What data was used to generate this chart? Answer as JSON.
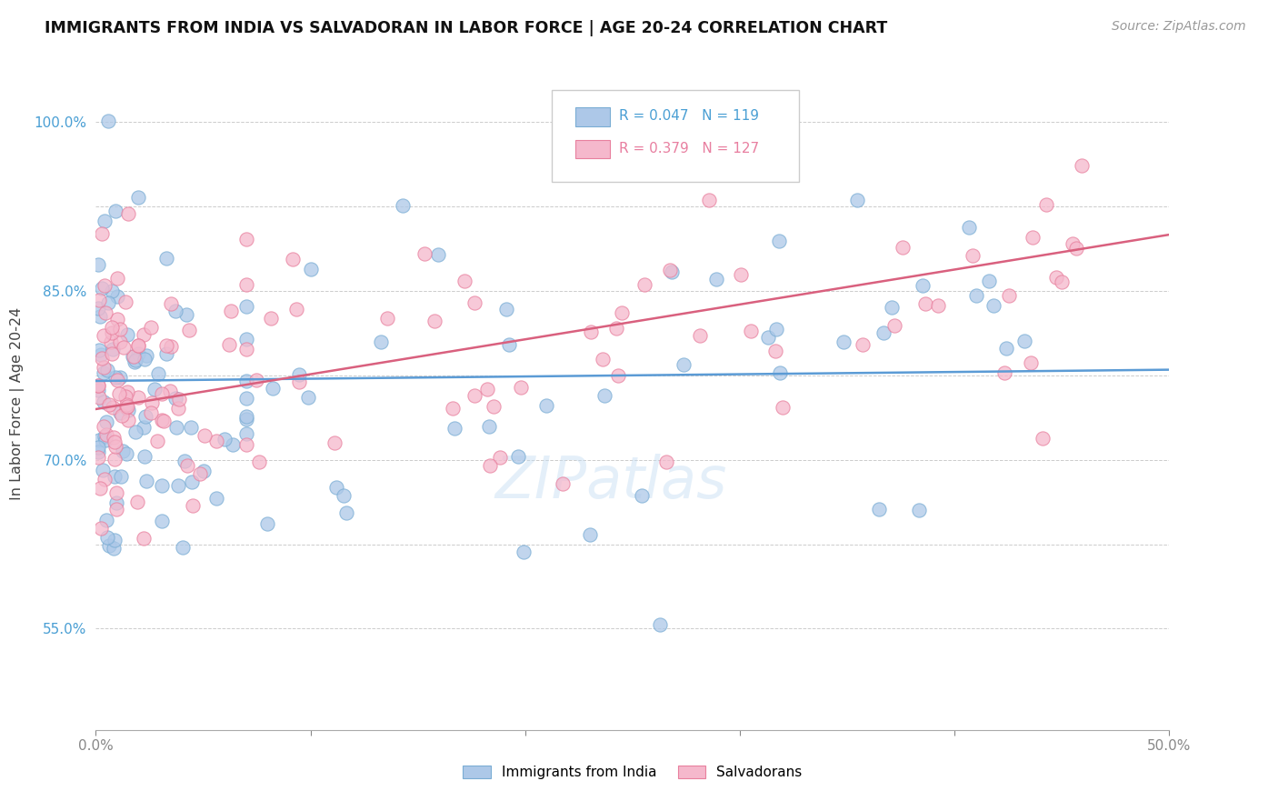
{
  "title": "IMMIGRANTS FROM INDIA VS SALVADORAN IN LABOR FORCE | AGE 20-24 CORRELATION CHART",
  "source": "Source: ZipAtlas.com",
  "ylabel": "In Labor Force | Age 20-24",
  "xlim": [
    0.0,
    0.5
  ],
  "ylim": [
    0.46,
    1.04
  ],
  "yticks": [
    0.55,
    0.7,
    0.85,
    1.0
  ],
  "ytick_labels": [
    "55.0%",
    "70.0%",
    "85.0%",
    "100.0%"
  ],
  "xticks": [
    0.0,
    0.1,
    0.2,
    0.3,
    0.4,
    0.5
  ],
  "xtick_labels": [
    "0.0%",
    "",
    "",
    "",
    "",
    "50.0%"
  ],
  "india_color": "#adc8e8",
  "india_edge_color": "#7aadd4",
  "salvador_color": "#f5b8cc",
  "salvador_edge_color": "#e8809e",
  "india_R": 0.047,
  "india_N": 119,
  "salvador_R": 0.379,
  "salvador_N": 127,
  "india_line_color": "#5b9bd5",
  "salvador_line_color": "#d9607e",
  "legend_india_label": "Immigrants from India",
  "legend_salvador_label": "Salvadorans",
  "watermark": "ZIPatlas",
  "background_color": "#ffffff",
  "grid_color": "#cccccc",
  "india_line_y0": 0.77,
  "india_line_y1": 0.78,
  "salvador_line_y0": 0.745,
  "salvador_line_y1": 0.9
}
